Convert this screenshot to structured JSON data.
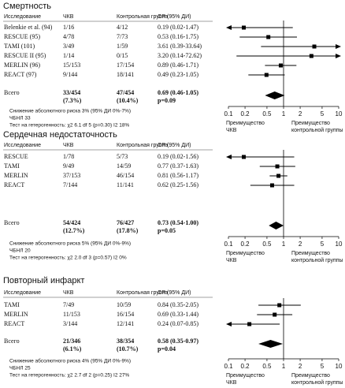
{
  "chart_data": [
    {
      "type": "forest",
      "title": "Смертность",
      "columns": [
        "Исследование",
        "ЧКВ",
        "Контрольная группа",
        "ОР (95% ДИ)"
      ],
      "categories": [
        "Belenkie et al. (94)",
        "RESCUE (95)",
        "TAMI (101)",
        "RESCUE II (95)",
        "MERLIN (96)",
        "REACT (97)"
      ],
      "treatment": [
        "1/16",
        "4/78",
        "3/49",
        "1/14",
        "15/153",
        "9/144"
      ],
      "control": [
        "4/12",
        "7/73",
        "1/59",
        "0/15",
        "17/154",
        "18/141"
      ],
      "values": [
        0.19,
        0.53,
        3.61,
        3.2,
        0.89,
        0.49
      ],
      "lower": [
        0.02,
        0.16,
        0.39,
        0.14,
        0.46,
        0.23
      ],
      "upper": [
        1.47,
        1.75,
        33.64,
        72.62,
        1.71,
        1.05
      ],
      "value_labels": [
        "0.19 (0.02-1.47)",
        "0.53 (0.16-1.75)",
        "3.61 (0.39-33.64)",
        "3.20 (0.14-72.62)",
        "0.89 (0.46-1.71)",
        "0.49 (0.23-1.05)"
      ],
      "total": {
        "label": "Всего",
        "treatment": "33/454",
        "treatment_pct": "(7.3%)",
        "control": "47/454",
        "control_pct": "(10.4%)",
        "value": 0.69,
        "lower": 0.46,
        "upper": 1.05,
        "value_label": "0.69 (0.46-1.05)",
        "p": "p=0.09"
      },
      "notes": [
        "Снижение абсолютного риска 3% (95% ДИ 0%-7%)",
        "ЧБНЛ 33",
        "Тест на гетерогенность: χ2 6.1 df 5 (p=0.30) I2 18%"
      ],
      "log_x": true,
      "xlim": [
        0.1,
        10
      ],
      "xticks": [
        0.1,
        0.2,
        0.5,
        1,
        2,
        5,
        10
      ],
      "xlabel_left": [
        "Преимущество",
        "ЧКВ"
      ],
      "xlabel_right": [
        "Преимущество",
        "контрольной группы"
      ]
    },
    {
      "type": "forest",
      "title": "Сердечная недостаточность",
      "columns": [
        "Исследование",
        "ЧКВ",
        "Контрольная группа",
        "ОР (95% ДИ)"
      ],
      "categories": [
        "RESCUE",
        "TAMI",
        "MERLIN",
        "REACT"
      ],
      "treatment": [
        "1/78",
        "9/49",
        "37/153",
        "7/144"
      ],
      "control": [
        "5/73",
        "14/59",
        "46/154",
        "11/141"
      ],
      "values": [
        0.19,
        0.77,
        0.81,
        0.62
      ],
      "lower": [
        0.02,
        0.37,
        0.56,
        0.25
      ],
      "upper": [
        1.56,
        1.63,
        1.17,
        1.56
      ],
      "value_labels": [
        "0.19 (0.02-1.56)",
        "0.77 (0.37-1.63)",
        "0.81 (0.56-1.17)",
        "0.62 (0.25-1.56)"
      ],
      "total": {
        "label": "Всего",
        "treatment": "54/424",
        "treatment_pct": "(12.7%)",
        "control": "76/427",
        "control_pct": "(17.8%)",
        "value": 0.73,
        "lower": 0.54,
        "upper": 1.0,
        "value_label": "0.73 (0.54-1.00)",
        "p": "p=0.05"
      },
      "notes": [
        "Снижение абсолютного риска 5% (95% ДИ 0%-9%)",
        "ЧБНЛ 20",
        "Тест на гетерогенность: χ2 2.0 df 3 (p=0.57) I2 0%"
      ],
      "log_x": true,
      "xlim": [
        0.1,
        10
      ],
      "xticks": [
        0.1,
        0.2,
        0.5,
        1,
        2,
        5,
        10
      ],
      "xlabel_left": [
        "Преимущество",
        "ЧКВ"
      ],
      "xlabel_right": [
        "Преимущество",
        "контрольной группы"
      ]
    },
    {
      "type": "forest",
      "title": "Повторный инфаркт",
      "columns": [
        "Исследование",
        "ЧКВ",
        "Контрольная группа",
        "ОР (95% ДИ)"
      ],
      "categories": [
        "TAMI",
        "MERLIN",
        "REACT"
      ],
      "treatment": [
        "7/49",
        "11/153",
        "3/144"
      ],
      "control": [
        "10/59",
        "16/154",
        "12/141"
      ],
      "values": [
        0.84,
        0.69,
        0.24
      ],
      "lower": [
        0.35,
        0.33,
        0.07
      ],
      "upper": [
        2.05,
        1.44,
        0.85
      ],
      "value_labels": [
        "0.84 (0.35-2.05)",
        "0.69 (0.33-1.44)",
        "0.24 (0.07-0.85)"
      ],
      "total": {
        "label": "Всего",
        "treatment": "21/346",
        "treatment_pct": "(6.1%)",
        "control": "38/354",
        "control_pct": "(10.7%)",
        "value": 0.58,
        "lower": 0.35,
        "upper": 0.97,
        "value_label": "0.58 (0.35-0.97)",
        "p": "p=0.04"
      },
      "notes": [
        "Снижение абсолютного риска 4% (95% ДИ 0%-9%)",
        "ЧБНЛ 25",
        "Тест на гетерогенность: χ2 2.7 df 2 (p=0.25) I2 27%"
      ],
      "log_x": true,
      "xlim": [
        0.1,
        10
      ],
      "xticks": [
        0.1,
        0.2,
        0.5,
        1,
        2,
        5,
        10
      ],
      "xlabel_left": [
        "Преимущество",
        "ЧКВ"
      ],
      "xlabel_right": [
        "Преимущество",
        "контрольной группы"
      ]
    }
  ]
}
